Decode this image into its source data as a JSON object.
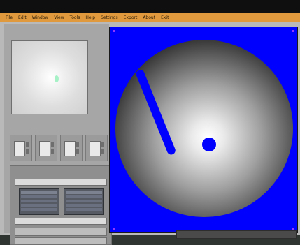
{
  "menubar": {
    "items": [
      "File",
      "Edit",
      "Window",
      "View",
      "Tools",
      "Help",
      "Settings",
      "Export",
      "About",
      "Exit"
    ]
  },
  "left_panel": {
    "title_line_1": "",
    "title_line_2": ""
  },
  "section": {
    "label": ""
  }
}
